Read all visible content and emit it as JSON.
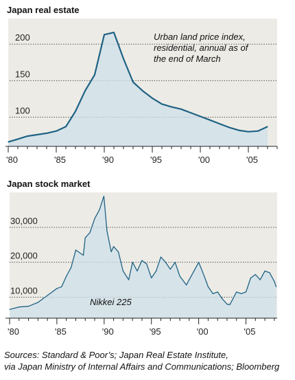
{
  "chart_data": [
    {
      "type": "area",
      "title": "Japan real estate",
      "annotation": [
        "Urban land price index,",
        "residential, annual as of",
        "the end of March"
      ],
      "x_ticks": [
        "'80",
        "'85",
        "'90",
        "'95",
        "'00",
        "'05"
      ],
      "y_ticks": [
        "100",
        "150",
        "200"
      ],
      "xlim": [
        1980,
        2008
      ],
      "ylim": [
        60,
        235
      ],
      "grid": "horizontal dotted",
      "series": [
        {
          "x": [
            1980,
            1981,
            1982,
            1983,
            1984,
            1985,
            1986,
            1987,
            1988,
            1989,
            1990,
            1991,
            1992,
            1993,
            1994,
            1995,
            1996,
            1997,
            1998,
            1999,
            2000,
            2001,
            2002,
            2003,
            2004,
            2005,
            2006,
            2007
          ],
          "values": [
            66,
            70,
            74,
            76,
            78,
            81,
            87,
            108,
            136,
            158,
            213,
            216,
            180,
            148,
            136,
            126,
            118,
            114,
            111,
            106,
            101,
            96,
            91,
            86,
            82,
            80,
            81,
            87
          ]
        }
      ]
    },
    {
      "type": "area",
      "title": "Japan stock market",
      "annotation": [
        "Nikkei 225"
      ],
      "x_ticks": [
        "'80",
        "'85",
        "'90",
        "'95",
        "'00",
        "'05"
      ],
      "y_ticks": [
        "10,000",
        "20,000",
        "30,000"
      ],
      "xlim": [
        1980,
        2008.3
      ],
      "ylim": [
        4000,
        40000
      ],
      "grid": "horizontal dotted",
      "series": [
        {
          "x": [
            1980,
            1981,
            1982,
            1983,
            1983.5,
            1984,
            1985,
            1985.5,
            1986,
            1986.5,
            1987,
            1987.8,
            1988,
            1988.5,
            1989,
            1989.5,
            1989.97,
            1990.3,
            1990.75,
            1991,
            1991.5,
            1992,
            1992.6,
            1993,
            1993.5,
            1994,
            1994.5,
            1995,
            1995.5,
            1996,
            1996.5,
            1997,
            1997.5,
            1998,
            1998.7,
            1999,
            1999.5,
            2000,
            2000.3,
            2000.8,
            2001,
            2001.5,
            2002,
            2002.5,
            2003,
            2003.3,
            2004,
            2004.5,
            2005,
            2005.5,
            2006,
            2006.5,
            2007,
            2007.5,
            2008,
            2008.2
          ],
          "values": [
            6500,
            7200,
            7400,
            8500,
            9500,
            10500,
            12500,
            13000,
            16000,
            18500,
            23500,
            22000,
            27000,
            28500,
            32500,
            35000,
            38900,
            29000,
            23000,
            24500,
            23000,
            17500,
            15000,
            20000,
            17500,
            20500,
            19500,
            15500,
            17500,
            21500,
            20000,
            18000,
            20000,
            16000,
            13500,
            15000,
            17500,
            20000,
            18000,
            14500,
            13000,
            11000,
            11500,
            9500,
            8000,
            7900,
            11500,
            11000,
            11500,
            15500,
            16500,
            15000,
            17500,
            17000,
            14500,
            13000
          ]
        }
      ]
    }
  ],
  "source_lines": [
    "Sources: Standard & Poor’s; Japan Real Estate Institute,",
    "via Japan Ministry of Internal Affairs and Communications; Bloomberg"
  ],
  "colors": {
    "line": "#1f6283",
    "fill": "#cfe0ea",
    "plot_bg": "#ecebe6"
  }
}
